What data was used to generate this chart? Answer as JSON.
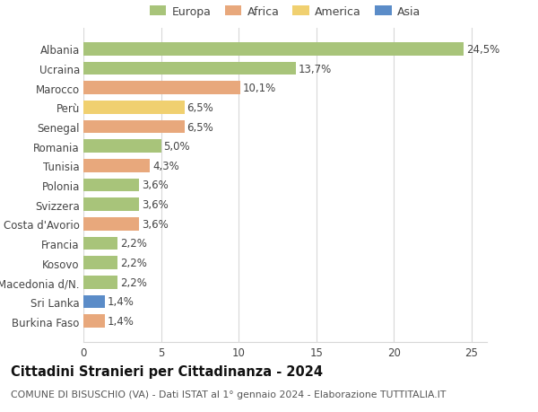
{
  "countries": [
    "Albania",
    "Ucraina",
    "Marocco",
    "Perù",
    "Senegal",
    "Romania",
    "Tunisia",
    "Polonia",
    "Svizzera",
    "Costa d'Avorio",
    "Francia",
    "Kosovo",
    "Macedonia d/N.",
    "Sri Lanka",
    "Burkina Faso"
  ],
  "values": [
    24.5,
    13.7,
    10.1,
    6.5,
    6.5,
    5.0,
    4.3,
    3.6,
    3.6,
    3.6,
    2.2,
    2.2,
    2.2,
    1.4,
    1.4
  ],
  "labels": [
    "24,5%",
    "13,7%",
    "10,1%",
    "6,5%",
    "6,5%",
    "5,0%",
    "4,3%",
    "3,6%",
    "3,6%",
    "3,6%",
    "2,2%",
    "2,2%",
    "2,2%",
    "1,4%",
    "1,4%"
  ],
  "categories": [
    "Europa",
    "Africa",
    "America",
    "Asia"
  ],
  "continent": [
    "Europa",
    "Europa",
    "Africa",
    "America",
    "Africa",
    "Europa",
    "Africa",
    "Europa",
    "Europa",
    "Africa",
    "Europa",
    "Europa",
    "Europa",
    "Asia",
    "Africa"
  ],
  "colors": {
    "Europa": "#a8c47a",
    "Africa": "#e8a87c",
    "America": "#f0d070",
    "Asia": "#5b8cc8"
  },
  "title": "Cittadini Stranieri per Cittadinanza - 2024",
  "subtitle": "COMUNE DI BISUSCHIO (VA) - Dati ISTAT al 1° gennaio 2024 - Elaborazione TUTTITALIA.IT",
  "xlim": [
    0,
    26
  ],
  "xticks": [
    0,
    5,
    10,
    15,
    20,
    25
  ],
  "bg_color": "#ffffff",
  "grid_color": "#d8d8d8",
  "bar_height": 0.68,
  "label_fontsize": 8.5,
  "tick_fontsize": 8.5,
  "title_fontsize": 10.5,
  "subtitle_fontsize": 7.8
}
